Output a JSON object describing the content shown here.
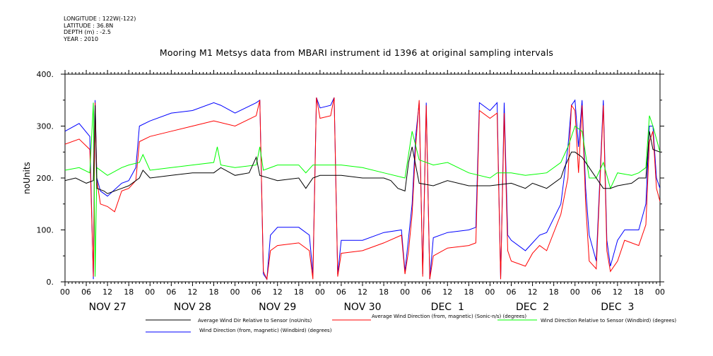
{
  "header": {
    "longitude": "LONGITUDE : 122W(-122)",
    "latitude": "LATITUDE : 36.8N",
    "depth": "DEPTH (m) : -2.5",
    "year": "YEAR : 2010"
  },
  "chart_data": {
    "type": "line",
    "title": "Mooring M1 Metsys data from MBARI instrument id 1396 at original sampling intervals",
    "ylabel": "noUnits",
    "xlabel": "",
    "ylim": [
      0,
      400
    ],
    "yticks": [
      "0.",
      "100.",
      "200.",
      "300.",
      "400."
    ],
    "xlim_hours": [
      0,
      168
    ],
    "hour_ticks": [
      "00",
      "06",
      "12",
      "18",
      "00",
      "06",
      "12",
      "18",
      "00",
      "06",
      "12",
      "18",
      "00",
      "06",
      "12",
      "18",
      "00",
      "06",
      "12",
      "18",
      "00",
      "06",
      "12",
      "18",
      "00",
      "06",
      "12",
      "18",
      "00"
    ],
    "day_labels": [
      "NOV 27",
      "NOV 28",
      "NOV 29",
      "NOV 30",
      "DEC  1",
      "DEC  2",
      "DEC  3"
    ],
    "grid": false,
    "legend": "bottom",
    "series": [
      {
        "name": "Average Wind Dir Relative to Sensor (noUnits)",
        "color": "#000000",
        "points": [
          [
            0,
            195
          ],
          [
            3,
            200
          ],
          [
            6,
            190
          ],
          [
            8,
            195
          ],
          [
            8.5,
            340
          ],
          [
            9,
            180
          ],
          [
            11,
            175
          ],
          [
            12,
            170
          ],
          [
            16,
            180
          ],
          [
            18,
            185
          ],
          [
            21,
            200
          ],
          [
            22,
            215
          ],
          [
            24,
            200
          ],
          [
            30,
            205
          ],
          [
            36,
            210
          ],
          [
            42,
            210
          ],
          [
            44,
            220
          ],
          [
            48,
            205
          ],
          [
            52,
            210
          ],
          [
            54,
            240
          ],
          [
            55,
            205
          ],
          [
            60,
            195
          ],
          [
            66,
            200
          ],
          [
            68,
            180
          ],
          [
            70,
            200
          ],
          [
            72,
            205
          ],
          [
            78,
            205
          ],
          [
            84,
            200
          ],
          [
            90,
            200
          ],
          [
            92,
            195
          ],
          [
            94,
            180
          ],
          [
            96,
            175
          ],
          [
            97,
            230
          ],
          [
            98,
            260
          ],
          [
            100,
            190
          ],
          [
            104,
            185
          ],
          [
            108,
            195
          ],
          [
            114,
            185
          ],
          [
            120,
            185
          ],
          [
            126,
            190
          ],
          [
            130,
            180
          ],
          [
            132,
            190
          ],
          [
            136,
            180
          ],
          [
            140,
            200
          ],
          [
            141,
            220
          ],
          [
            143,
            250
          ],
          [
            144,
            250
          ],
          [
            146,
            240
          ],
          [
            148,
            220
          ],
          [
            150,
            200
          ],
          [
            152,
            180
          ],
          [
            154,
            180
          ],
          [
            156,
            185
          ],
          [
            160,
            190
          ],
          [
            162,
            200
          ],
          [
            164,
            200
          ],
          [
            165,
            290
          ],
          [
            166,
            255
          ],
          [
            168,
            250
          ]
        ]
      },
      {
        "name": "Average Wind Direction (from, magnetic) (Sonic-n/s) (degrees)",
        "color": "#ff0000",
        "points": [
          [
            0,
            265
          ],
          [
            4,
            275
          ],
          [
            7,
            255
          ],
          [
            8,
            10
          ],
          [
            8.5,
            345
          ],
          [
            9,
            195
          ],
          [
            10,
            150
          ],
          [
            12,
            145
          ],
          [
            14,
            135
          ],
          [
            16,
            175
          ],
          [
            18,
            180
          ],
          [
            20,
            195
          ],
          [
            21,
            270
          ],
          [
            24,
            280
          ],
          [
            30,
            290
          ],
          [
            36,
            300
          ],
          [
            42,
            310
          ],
          [
            48,
            300
          ],
          [
            54,
            320
          ],
          [
            55,
            350
          ],
          [
            56,
            20
          ],
          [
            57,
            5
          ],
          [
            58,
            60
          ],
          [
            60,
            70
          ],
          [
            66,
            75
          ],
          [
            69,
            60
          ],
          [
            70,
            5
          ],
          [
            71,
            355
          ],
          [
            72,
            315
          ],
          [
            75,
            320
          ],
          [
            76,
            355
          ],
          [
            77,
            10
          ],
          [
            78,
            55
          ],
          [
            84,
            60
          ],
          [
            90,
            75
          ],
          [
            95,
            90
          ],
          [
            96,
            15
          ],
          [
            97,
            60
          ],
          [
            98,
            130
          ],
          [
            99,
            260
          ],
          [
            100,
            350
          ],
          [
            101,
            10
          ],
          [
            102,
            340
          ],
          [
            103,
            5
          ],
          [
            104,
            50
          ],
          [
            108,
            65
          ],
          [
            114,
            70
          ],
          [
            116,
            75
          ],
          [
            117,
            330
          ],
          [
            120,
            315
          ],
          [
            122,
            325
          ],
          [
            123,
            5
          ],
          [
            124,
            325
          ],
          [
            125,
            60
          ],
          [
            126,
            40
          ],
          [
            130,
            30
          ],
          [
            132,
            55
          ],
          [
            134,
            70
          ],
          [
            136,
            60
          ],
          [
            140,
            130
          ],
          [
            142,
            200
          ],
          [
            143,
            340
          ],
          [
            144,
            330
          ],
          [
            145,
            210
          ],
          [
            146,
            340
          ],
          [
            147,
            150
          ],
          [
            148,
            40
          ],
          [
            150,
            25
          ],
          [
            152,
            340
          ],
          [
            153,
            60
          ],
          [
            154,
            20
          ],
          [
            156,
            40
          ],
          [
            158,
            80
          ],
          [
            162,
            70
          ],
          [
            164,
            110
          ],
          [
            165,
            270
          ],
          [
            166,
            290
          ],
          [
            167,
            180
          ],
          [
            168,
            155
          ]
        ]
      },
      {
        "name": "Wind Direction Relative to Sensor (Windbird) (degrees)",
        "color": "#00ff00",
        "points": [
          [
            0,
            215
          ],
          [
            4,
            220
          ],
          [
            7,
            210
          ],
          [
            8,
            345
          ],
          [
            8.5,
            10
          ],
          [
            9,
            220
          ],
          [
            12,
            205
          ],
          [
            16,
            220
          ],
          [
            18,
            225
          ],
          [
            21,
            230
          ],
          [
            22,
            245
          ],
          [
            24,
            215
          ],
          [
            30,
            220
          ],
          [
            36,
            225
          ],
          [
            42,
            230
          ],
          [
            43,
            260
          ],
          [
            44,
            225
          ],
          [
            48,
            220
          ],
          [
            54,
            225
          ],
          [
            55,
            260
          ],
          [
            56,
            215
          ],
          [
            60,
            225
          ],
          [
            66,
            225
          ],
          [
            68,
            210
          ],
          [
            70,
            225
          ],
          [
            72,
            225
          ],
          [
            78,
            225
          ],
          [
            84,
            220
          ],
          [
            90,
            210
          ],
          [
            96,
            200
          ],
          [
            98,
            290
          ],
          [
            100,
            235
          ],
          [
            104,
            225
          ],
          [
            108,
            230
          ],
          [
            114,
            210
          ],
          [
            120,
            200
          ],
          [
            122,
            210
          ],
          [
            126,
            210
          ],
          [
            130,
            205
          ],
          [
            136,
            210
          ],
          [
            140,
            230
          ],
          [
            142,
            260
          ],
          [
            144,
            300
          ],
          [
            146,
            290
          ],
          [
            148,
            200
          ],
          [
            150,
            200
          ],
          [
            152,
            230
          ],
          [
            154,
            180
          ],
          [
            156,
            210
          ],
          [
            160,
            205
          ],
          [
            162,
            210
          ],
          [
            164,
            220
          ],
          [
            165,
            320
          ],
          [
            166,
            300
          ],
          [
            168,
            250
          ]
        ]
      },
      {
        "name": "Wind Direction (from, magnetic) (Windbird) (degrees)",
        "color": "#0000ff",
        "points": [
          [
            0,
            290
          ],
          [
            4,
            305
          ],
          [
            7,
            280
          ],
          [
            8,
            5
          ],
          [
            8.5,
            350
          ],
          [
            9,
            200
          ],
          [
            10,
            175
          ],
          [
            12,
            165
          ],
          [
            16,
            190
          ],
          [
            18,
            195
          ],
          [
            20,
            220
          ],
          [
            21,
            300
          ],
          [
            24,
            310
          ],
          [
            30,
            325
          ],
          [
            36,
            330
          ],
          [
            42,
            345
          ],
          [
            44,
            340
          ],
          [
            48,
            325
          ],
          [
            54,
            345
          ],
          [
            55,
            350
          ],
          [
            56,
            15
          ],
          [
            57,
            5
          ],
          [
            58,
            90
          ],
          [
            60,
            105
          ],
          [
            66,
            105
          ],
          [
            69,
            90
          ],
          [
            70,
            15
          ],
          [
            71,
            355
          ],
          [
            72,
            335
          ],
          [
            75,
            340
          ],
          [
            76,
            355
          ],
          [
            77,
            15
          ],
          [
            78,
            80
          ],
          [
            84,
            80
          ],
          [
            90,
            95
          ],
          [
            95,
            100
          ],
          [
            96,
            20
          ],
          [
            97,
            85
          ],
          [
            98,
            150
          ],
          [
            99,
            280
          ],
          [
            100,
            345
          ],
          [
            101,
            15
          ],
          [
            102,
            345
          ],
          [
            103,
            5
          ],
          [
            104,
            85
          ],
          [
            108,
            95
          ],
          [
            114,
            100
          ],
          [
            116,
            105
          ],
          [
            117,
            345
          ],
          [
            120,
            330
          ],
          [
            122,
            345
          ],
          [
            123,
            5
          ],
          [
            124,
            345
          ],
          [
            125,
            90
          ],
          [
            126,
            80
          ],
          [
            130,
            60
          ],
          [
            132,
            75
          ],
          [
            134,
            90
          ],
          [
            136,
            95
          ],
          [
            140,
            150
          ],
          [
            142,
            260
          ],
          [
            143,
            340
          ],
          [
            144,
            350
          ],
          [
            145,
            260
          ],
          [
            146,
            350
          ],
          [
            147,
            180
          ],
          [
            148,
            90
          ],
          [
            150,
            40
          ],
          [
            152,
            350
          ],
          [
            153,
            80
          ],
          [
            154,
            30
          ],
          [
            156,
            80
          ],
          [
            158,
            100
          ],
          [
            162,
            100
          ],
          [
            164,
            150
          ],
          [
            165,
            300
          ],
          [
            166,
            300
          ],
          [
            167,
            200
          ],
          [
            168,
            180
          ]
        ]
      }
    ]
  }
}
